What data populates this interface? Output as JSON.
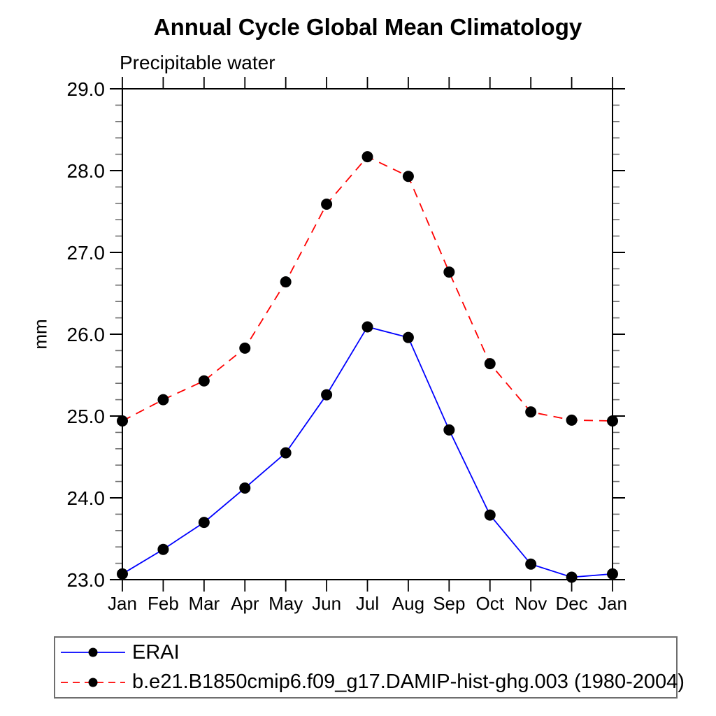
{
  "page": {
    "background": "#ffffff"
  },
  "chart_data": {
    "type": "line",
    "title": "Annual Cycle Global Mean Climatology",
    "subtitle": "Precipitable water",
    "ylabel": "mm",
    "categories": [
      "Jan",
      "Feb",
      "Mar",
      "Apr",
      "May",
      "Jun",
      "Jul",
      "Aug",
      "Sep",
      "Oct",
      "Nov",
      "Dec",
      "Jan"
    ],
    "ylim": [
      23.0,
      29.0
    ],
    "y_major_tick_labels": [
      "23.0",
      "24.0",
      "25.0",
      "26.0",
      "27.0",
      "28.0",
      "29.0"
    ],
    "y_minor_step": 0.2,
    "grid": false,
    "legend_position": "bottom-left",
    "axis_color": "#000000",
    "minor_tick_color": "#707070",
    "marker_color": "#000000",
    "series": [
      {
        "name": "ERAI",
        "color": "#0000ff",
        "line_style": "solid",
        "marker": "circle",
        "values": [
          23.07,
          23.37,
          23.7,
          24.12,
          24.55,
          25.26,
          26.09,
          25.96,
          24.83,
          23.79,
          23.19,
          23.03,
          23.07
        ]
      },
      {
        "name": "b.e21.B1850cmip6.f09_g17.DAMIP-hist-ghg.003 (1980-2004)",
        "color": "#ff0000",
        "line_style": "dashed",
        "marker": "circle",
        "values": [
          24.94,
          25.2,
          25.43,
          25.83,
          26.64,
          27.59,
          28.17,
          27.93,
          26.76,
          25.64,
          25.05,
          24.95,
          24.94
        ]
      }
    ]
  }
}
